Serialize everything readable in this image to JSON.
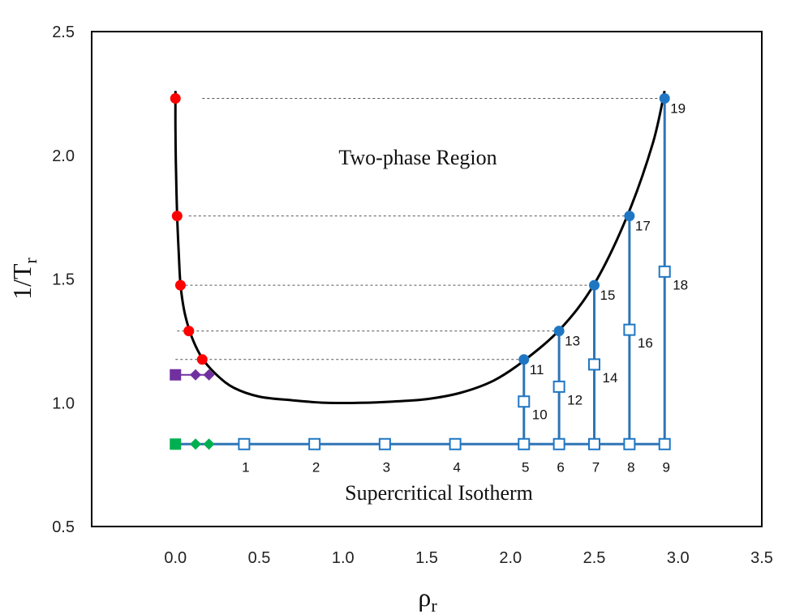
{
  "chart_data": {
    "type": "scatter",
    "xlabel": "ρ",
    "xlabel_sub": "r",
    "ylabel": "1/T",
    "ylabel_sub": "r",
    "xlim": [
      -0.5,
      3.5
    ],
    "ylim": [
      0.5,
      2.5
    ],
    "xticks": [
      {
        "v": 0.0,
        "label": "0.0"
      },
      {
        "v": 0.5,
        "label": "0.5"
      },
      {
        "v": 1.0,
        "label": "1.0"
      },
      {
        "v": 1.5,
        "label": "1.5"
      },
      {
        "v": 2.0,
        "label": "2.0"
      },
      {
        "v": 2.5,
        "label": "2.5"
      },
      {
        "v": 3.0,
        "label": "3.0"
      },
      {
        "v": 3.5,
        "label": "3.5"
      }
    ],
    "yticks": [
      {
        "v": 0.5,
        "label": "0.5"
      },
      {
        "v": 1.0,
        "label": "1.0"
      },
      {
        "v": 1.5,
        "label": "1.5"
      },
      {
        "v": 2.0,
        "label": "2.0"
      },
      {
        "v": 2.5,
        "label": "2.5"
      }
    ],
    "grid": false,
    "annotations": [
      {
        "text": "Two-phase Region",
        "x": 1.0,
        "y": 2.0
      },
      {
        "text": "Supercritical Isotherm",
        "x": 0.78,
        "y": 0.625
      }
    ],
    "coexistence_curve": [
      [
        0.0,
        2.26
      ],
      [
        0.0,
        2.1
      ],
      [
        0.003,
        1.95
      ],
      [
        0.01,
        1.76
      ],
      [
        0.02,
        1.6
      ],
      [
        0.03,
        1.48
      ],
      [
        0.05,
        1.38
      ],
      [
        0.08,
        1.3
      ],
      [
        0.12,
        1.23
      ],
      [
        0.17,
        1.17
      ],
      [
        0.25,
        1.11
      ],
      [
        0.35,
        1.06
      ],
      [
        0.5,
        1.025
      ],
      [
        0.7,
        1.01
      ],
      [
        0.9,
        1.0
      ],
      [
        1.1,
        1.0
      ],
      [
        1.3,
        1.005
      ],
      [
        1.5,
        1.015
      ],
      [
        1.7,
        1.04
      ],
      [
        1.9,
        1.09
      ],
      [
        2.08,
        1.17
      ],
      [
        2.3,
        1.3
      ],
      [
        2.5,
        1.48
      ],
      [
        2.7,
        1.76
      ],
      [
        2.85,
        2.05
      ],
      [
        2.92,
        2.26
      ]
    ],
    "liquid_branch_points": [
      {
        "x": 2.08,
        "y": 1.175,
        "label": "11"
      },
      {
        "x": 2.29,
        "y": 1.29,
        "label": "13"
      },
      {
        "x": 2.5,
        "y": 1.475,
        "label": "15"
      },
      {
        "x": 2.71,
        "y": 1.755,
        "label": "17"
      },
      {
        "x": 2.92,
        "y": 2.23,
        "label": "19"
      }
    ],
    "vapor_branch_points": [
      {
        "x": 0.0,
        "y": 2.23
      },
      {
        "x": 0.01,
        "y": 1.755
      },
      {
        "x": 0.03,
        "y": 1.475
      },
      {
        "x": 0.08,
        "y": 1.29
      },
      {
        "x": 0.16,
        "y": 1.175
      }
    ],
    "isotherm": {
      "y": 0.833,
      "x_start": 0.0,
      "x_end": 2.92,
      "open_squares": [
        {
          "x": 0.41,
          "label": "1"
        },
        {
          "x": 0.83,
          "label": "2"
        },
        {
          "x": 1.25,
          "label": "3"
        },
        {
          "x": 1.67,
          "label": "4"
        },
        {
          "x": 2.08,
          "label": "5"
        },
        {
          "x": 2.29,
          "label": "6"
        },
        {
          "x": 2.5,
          "label": "7"
        },
        {
          "x": 2.71,
          "label": "8"
        },
        {
          "x": 2.92,
          "label": "9"
        }
      ]
    },
    "vertical_paths": [
      {
        "x": 2.08,
        "top": 1.175,
        "square_y": 1.005,
        "label": "10"
      },
      {
        "x": 2.29,
        "top": 1.29,
        "square_y": 1.065,
        "label": "12"
      },
      {
        "x": 2.5,
        "top": 1.475,
        "square_y": 1.155,
        "label": "14"
      },
      {
        "x": 2.71,
        "top": 1.755,
        "square_y": 1.295,
        "label": "16"
      },
      {
        "x": 2.92,
        "top": 2.23,
        "square_y": 1.53,
        "label": "18"
      }
    ],
    "green_markers": {
      "square": {
        "x": 0.0,
        "y": 0.833
      },
      "diamonds": [
        {
          "x": 0.12,
          "y": 0.833
        },
        {
          "x": 0.2,
          "y": 0.833
        }
      ]
    },
    "purple_markers": {
      "square": {
        "x": 0.0,
        "y": 1.113
      },
      "diamonds": [
        {
          "x": 0.12,
          "y": 1.113
        },
        {
          "x": 0.2,
          "y": 1.113
        }
      ]
    },
    "colors": {
      "curve": "#000000",
      "blue": "#1F77C4",
      "blue_line": "#2E75B6",
      "red": "#FF0000",
      "green": "#00B050",
      "purple": "#7030A0",
      "tie_line": "#555555"
    }
  }
}
